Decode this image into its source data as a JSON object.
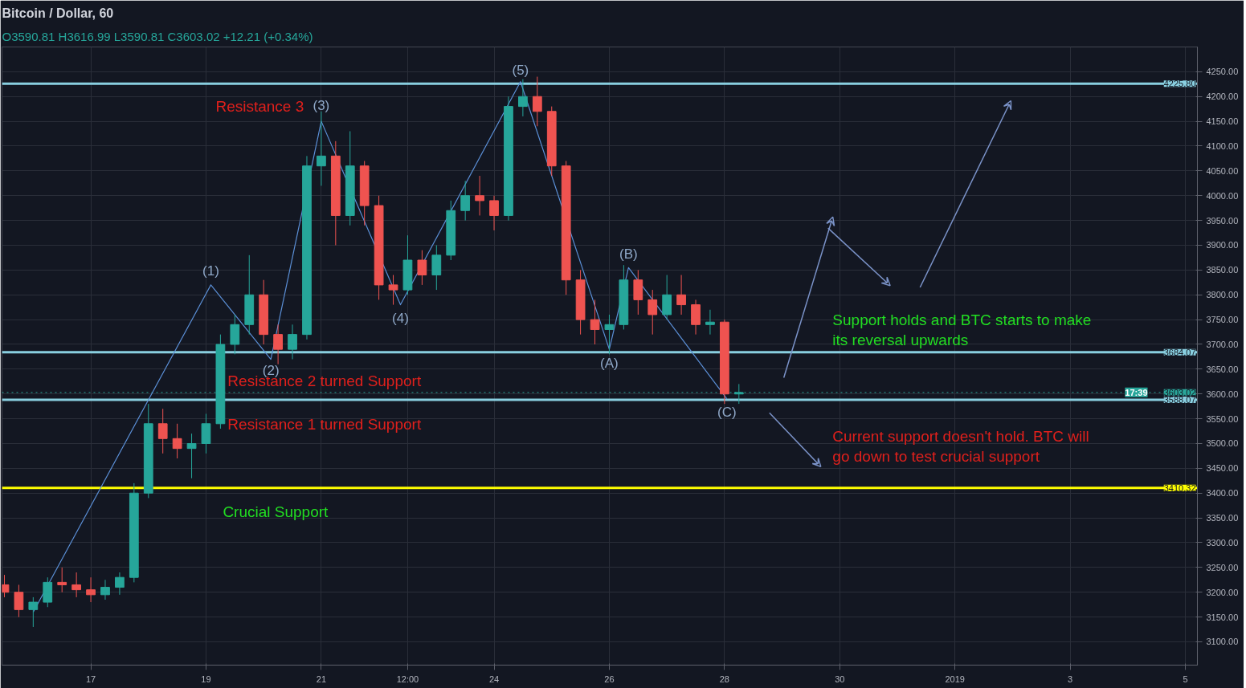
{
  "chart_data": {
    "type": "candlestick",
    "title": "Bitcoin / Dollar, 60",
    "subtitle": "O3590.81 H3616.99 L3590.81 C3603.02 +12.21 (+0.34%)",
    "x": [
      "2018-12-15T12:00",
      "2018-12-15T18:00",
      "2018-12-16T00:00",
      "2018-12-16T06:00",
      "2018-12-16T12:00",
      "2018-12-16T18:00",
      "2018-12-17T00:00",
      "2018-12-17T06:00",
      "2018-12-17T12:00",
      "2018-12-17T18:00",
      "2018-12-18T00:00",
      "2018-12-18T06:00",
      "2018-12-18T12:00",
      "2018-12-18T18:00",
      "2018-12-19T00:00",
      "2018-12-19T06:00",
      "2018-12-19T12:00",
      "2018-12-19T18:00",
      "2018-12-20T00:00",
      "2018-12-20T06:00",
      "2018-12-20T12:00",
      "2018-12-20T18:00",
      "2018-12-21T00:00",
      "2018-12-21T06:00",
      "2018-12-21T12:00",
      "2018-12-21T18:00",
      "2018-12-22T00:00",
      "2018-12-22T06:00",
      "2018-12-22T12:00",
      "2018-12-22T18:00",
      "2018-12-23T00:00",
      "2018-12-23T06:00",
      "2018-12-23T12:00",
      "2018-12-23T18:00",
      "2018-12-24T00:00",
      "2018-12-24T06:00",
      "2018-12-24T12:00",
      "2018-12-24T18:00",
      "2018-12-25T00:00",
      "2018-12-25T06:00",
      "2018-12-25T12:00",
      "2018-12-25T18:00",
      "2018-12-26T00:00",
      "2018-12-26T06:00",
      "2018-12-26T12:00",
      "2018-12-26T18:00",
      "2018-12-27T00:00",
      "2018-12-27T06:00",
      "2018-12-27T12:00",
      "2018-12-27T18:00",
      "2018-12-28T00:00",
      "2018-12-28T06:00"
    ],
    "ohlc": [
      [
        3215,
        3235,
        3190,
        3200
      ],
      [
        3200,
        3215,
        3150,
        3165
      ],
      [
        3165,
        3190,
        3130,
        3180
      ],
      [
        3180,
        3230,
        3170,
        3220
      ],
      [
        3220,
        3250,
        3200,
        3215
      ],
      [
        3215,
        3240,
        3190,
        3205
      ],
      [
        3205,
        3230,
        3180,
        3195
      ],
      [
        3195,
        3225,
        3185,
        3210
      ],
      [
        3210,
        3240,
        3195,
        3230
      ],
      [
        3230,
        3420,
        3220,
        3400
      ],
      [
        3400,
        3580,
        3390,
        3540
      ],
      [
        3540,
        3570,
        3480,
        3510
      ],
      [
        3510,
        3540,
        3470,
        3490
      ],
      [
        3490,
        3520,
        3430,
        3500
      ],
      [
        3500,
        3560,
        3480,
        3540
      ],
      [
        3540,
        3720,
        3530,
        3700
      ],
      [
        3700,
        3760,
        3680,
        3740
      ],
      [
        3740,
        3880,
        3720,
        3800
      ],
      [
        3800,
        3830,
        3700,
        3720
      ],
      [
        3720,
        3740,
        3660,
        3690
      ],
      [
        3690,
        3740,
        3670,
        3720
      ],
      [
        3720,
        4080,
        3710,
        4060
      ],
      [
        4060,
        4170,
        4020,
        4080
      ],
      [
        4080,
        4110,
        3900,
        3960
      ],
      [
        3960,
        4130,
        3940,
        4060
      ],
      [
        4060,
        4070,
        3940,
        3980
      ],
      [
        3980,
        4000,
        3790,
        3820
      ],
      [
        3820,
        3840,
        3780,
        3810
      ],
      [
        3810,
        3920,
        3800,
        3870
      ],
      [
        3870,
        3890,
        3820,
        3840
      ],
      [
        3840,
        3900,
        3810,
        3880
      ],
      [
        3880,
        3990,
        3870,
        3970
      ],
      [
        3970,
        4030,
        3950,
        4000
      ],
      [
        4000,
        4040,
        3960,
        3990
      ],
      [
        3990,
        4000,
        3930,
        3960
      ],
      [
        3960,
        4200,
        3950,
        4180
      ],
      [
        4180,
        4235,
        4160,
        4200
      ],
      [
        4200,
        4240,
        4140,
        4170
      ],
      [
        4170,
        4180,
        4040,
        4060
      ],
      [
        4060,
        4070,
        3800,
        3830
      ],
      [
        3830,
        3850,
        3720,
        3750
      ],
      [
        3750,
        3790,
        3700,
        3730
      ],
      [
        3730,
        3760,
        3680,
        3740
      ],
      [
        3740,
        3860,
        3730,
        3830
      ],
      [
        3830,
        3850,
        3760,
        3790
      ],
      [
        3790,
        3810,
        3720,
        3760
      ],
      [
        3760,
        3840,
        3750,
        3800
      ],
      [
        3800,
        3840,
        3760,
        3780
      ],
      [
        3780,
        3790,
        3720,
        3740
      ],
      [
        3740,
        3770,
        3720,
        3745
      ],
      [
        3745,
        3750,
        3580,
        3600
      ],
      [
        3600,
        3620,
        3580,
        3603
      ]
    ],
    "colors": [
      "#ef5350",
      "#ef5350",
      "#26a69a",
      "#26a69a",
      "#ef5350",
      "#ef5350",
      "#ef5350",
      "#26a69a",
      "#26a69a",
      "#26a69a",
      "#26a69a",
      "#ef5350",
      "#ef5350",
      "#26a69a",
      "#26a69a",
      "#26a69a",
      "#26a69a",
      "#26a69a",
      "#ef5350",
      "#ef5350",
      "#26a69a",
      "#26a69a",
      "#26a69a",
      "#ef5350",
      "#26a69a",
      "#ef5350",
      "#ef5350",
      "#ef5350",
      "#26a69a",
      "#ef5350",
      "#26a69a",
      "#26a69a",
      "#26a69a",
      "#ef5350",
      "#ef5350",
      "#26a69a",
      "#26a69a",
      "#ef5350",
      "#ef5350",
      "#ef5350",
      "#ef5350",
      "#ef5350",
      "#26a69a",
      "#26a69a",
      "#ef5350",
      "#ef5350",
      "#26a69a",
      "#ef5350",
      "#ef5350",
      "#26a69a",
      "#ef5350",
      "#26a69a"
    ],
    "series": [
      {
        "type": "line",
        "color": "#5b8fd6",
        "x": [
          "2018-12-16T00:00",
          "2018-12-19T02:00",
          "2018-12-20T03:00",
          "2018-12-21T00:00",
          "2018-12-22T09:00",
          "2018-12-24T11:00",
          "2018-12-26T00:00",
          "2018-12-26T08:00",
          "2018-12-28T01:00"
        ],
        "values": [
          3160,
          3820,
          3670,
          4150,
          3780,
          4230,
          3690,
          3855,
          3590
        ]
      }
    ],
    "marker": "none",
    "line_style": "solid",
    "xlim": [
      "2018-12-15T11:00",
      "2019-01-05T05:00"
    ],
    "xticks": [
      {
        "value": "2018-12-17",
        "label": "17"
      },
      {
        "value": "2018-12-19",
        "label": "19"
      },
      {
        "value": "2018-12-21",
        "label": "21"
      },
      {
        "value": "2018-12-22T12:00",
        "label": "12:00"
      },
      {
        "value": "2018-12-24",
        "label": "24"
      },
      {
        "value": "2018-12-26",
        "label": "26"
      },
      {
        "value": "2018-12-28",
        "label": "28"
      },
      {
        "value": "2018-12-30",
        "label": "30"
      },
      {
        "value": "2019-01-01",
        "label": "2019"
      },
      {
        "value": "2019-01-03",
        "label": "3"
      },
      {
        "value": "2019-01-05",
        "label": "5"
      }
    ],
    "ylim": [
      3053,
      4300
    ],
    "yticks": [
      {
        "value": 3100,
        "label": "3100.00"
      },
      {
        "value": 3150,
        "label": "3150.00"
      },
      {
        "value": 3200,
        "label": "3200.00"
      },
      {
        "value": 3250,
        "label": "3250.00"
      },
      {
        "value": 3300,
        "label": "3300.00"
      },
      {
        "value": 3350,
        "label": "3350.00"
      },
      {
        "value": 3400,
        "label": "3400.00"
      },
      {
        "value": 3450,
        "label": "3450.00"
      },
      {
        "value": 3500,
        "label": "3500.00"
      },
      {
        "value": 3550,
        "label": "3550.00"
      },
      {
        "value": 3600,
        "label": "3600.00"
      },
      {
        "value": 3650,
        "label": "3650.00"
      },
      {
        "value": 3700,
        "label": "3700.00"
      },
      {
        "value": 3750,
        "label": "3750.00"
      },
      {
        "value": 3800,
        "label": "3800.00"
      },
      {
        "value": 3850,
        "label": "3850.00"
      },
      {
        "value": 3900,
        "label": "3900.00"
      },
      {
        "value": 3950,
        "label": "3950.00"
      },
      {
        "value": 4000,
        "label": "4000.00"
      },
      {
        "value": 4050,
        "label": "4050.00"
      },
      {
        "value": 4100,
        "label": "4100.00"
      },
      {
        "value": 4150,
        "label": "4150.00"
      },
      {
        "value": 4200,
        "label": "4200.00"
      },
      {
        "value": 4250,
        "label": "4250.00"
      }
    ],
    "grid": true,
    "ref_lines": [
      {
        "axis": "y",
        "value": 4225.8,
        "label": "4225.80",
        "color": "#89cfe0"
      },
      {
        "axis": "y",
        "value": 3684.07,
        "label": "3684.07",
        "color": "#89cfe0"
      },
      {
        "axis": "y",
        "value": 3603.02,
        "label": "3603.02",
        "color": "#2aa69a",
        "line_style": "dotted"
      },
      {
        "axis": "y",
        "value": 3588.07,
        "label": "3588.07",
        "color": "#89cfe0"
      },
      {
        "axis": "y",
        "value": 3410.32,
        "label": "3410.32",
        "color": "#ffff00"
      }
    ],
    "annotations": [
      "17:39",
      {
        "text": "Resistance 3",
        "x": "2018-12-19T04:00",
        "y": 4225.8
      },
      {
        "text": "Resistance 2 turned Support",
        "x": "2018-12-19T09:00",
        "y": 3684.07
      },
      {
        "text": "Resistance 1 turned Support",
        "x": "2018-12-19T09:00",
        "y": 3588.07
      },
      {
        "text": "Crucial Support",
        "x": "2018-12-19T07:00",
        "y": 3410.32
      },
      {
        "text": "Support holds and BTC starts to make\nits reversal upwards",
        "x": "2018-12-29T21:00",
        "y": 3684.07
      },
      {
        "text": "Current support doesn't hold. BTC will\ngo down to test crucial support",
        "x": "2018-12-29T21:00",
        "y": 3588.07
      },
      {
        "text": "(1)",
        "x": "2018-12-19T02:00",
        "y": 3820
      },
      {
        "text": "(2)",
        "x": "2018-12-20T03:00",
        "y": 3670
      },
      {
        "text": "(3)",
        "x": "2018-12-21T00:00",
        "y": 4150
      },
      {
        "text": "(4)",
        "x": "2018-12-22T09:00",
        "y": 3780
      },
      {
        "text": "(5)",
        "x": "2018-12-24T11:00",
        "y": 4230
      },
      {
        "text": "(A)",
        "x": "2018-12-26T00:00",
        "y": 3690
      },
      {
        "text": "(B)",
        "x": "2018-12-26T08:00",
        "y": 3855
      },
      {
        "text": "(C)",
        "x": "2018-12-28T01:00",
        "y": 3590
      }
    ]
  }
}
